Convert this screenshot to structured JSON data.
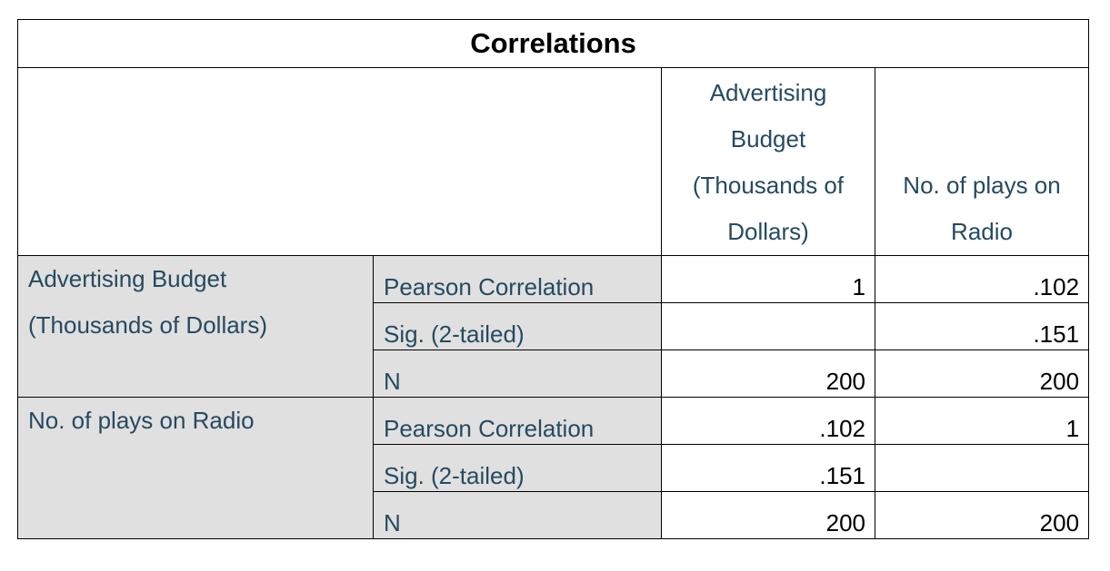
{
  "table": {
    "title": "Correlations",
    "columns": [
      "Advertising\nBudget\n(Thousands of\nDollars)",
      "No. of plays on\nRadio"
    ],
    "groups": [
      {
        "label": "Advertising Budget\n(Thousands of Dollars)",
        "rows": [
          {
            "stat": "Pearson Correlation",
            "values": [
              "1",
              ".102"
            ]
          },
          {
            "stat": "Sig. (2-tailed)",
            "values": [
              "",
              ".151"
            ]
          },
          {
            "stat": "N",
            "values": [
              "200",
              "200"
            ]
          }
        ]
      },
      {
        "label": "No. of plays on Radio",
        "rows": [
          {
            "stat": "Pearson Correlation",
            "values": [
              ".102",
              "1"
            ]
          },
          {
            "stat": "Sig. (2-tailed)",
            "values": [
              ".151",
              ""
            ]
          },
          {
            "stat": "N",
            "values": [
              "200",
              "200"
            ]
          }
        ]
      }
    ]
  }
}
